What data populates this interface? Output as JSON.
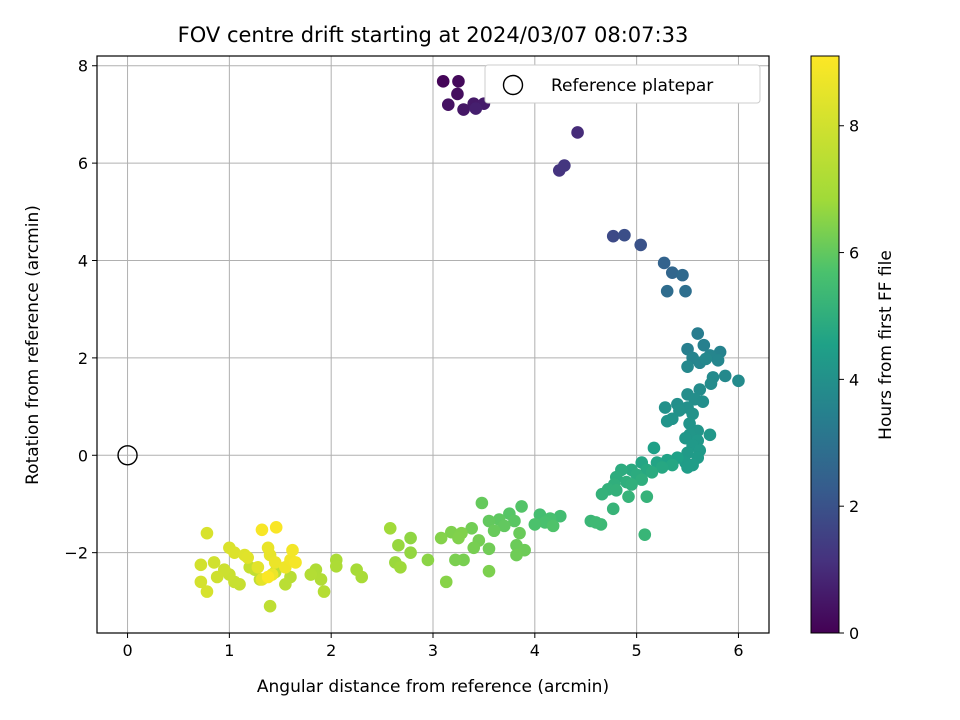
{
  "chart_data": {
    "type": "scatter",
    "title": "FOV centre drift starting at 2024/03/07 08:07:33",
    "xlabel": "Angular distance from reference (arcmin)",
    "ylabel": "Rotation from reference (arcmin)",
    "xlim": [
      -0.3,
      6.3
    ],
    "ylim": [
      -3.65,
      8.2
    ],
    "xticks": [
      "0",
      "1",
      "2",
      "3",
      "4",
      "5",
      "6"
    ],
    "yticks": [
      "−2",
      "0",
      "2",
      "4",
      "6",
      "8"
    ],
    "grid": true,
    "legend": {
      "placement": "top-right",
      "entries": [
        "Reference platepar"
      ]
    },
    "colorbar": {
      "label": "Hours from first FF file",
      "range": [
        0,
        9.1
      ],
      "ticks": [
        "0",
        "2",
        "4",
        "6",
        "8"
      ],
      "colormap": "viridis"
    },
    "reference_point": {
      "x": 0,
      "y": 0
    },
    "points": [
      [
        3.1,
        7.68,
        0.1
      ],
      [
        3.25,
        7.68,
        0.2
      ],
      [
        3.24,
        7.42,
        0.3
      ],
      [
        3.15,
        7.2,
        0.4
      ],
      [
        3.3,
        7.1,
        0.5
      ],
      [
        3.4,
        7.22,
        0.55
      ],
      [
        3.5,
        7.22,
        0.6
      ],
      [
        3.42,
        7.12,
        0.7
      ],
      [
        4.42,
        6.63,
        1.0
      ],
      [
        4.24,
        5.85,
        1.2
      ],
      [
        4.29,
        5.95,
        1.25
      ],
      [
        4.77,
        4.5,
        1.8
      ],
      [
        4.88,
        4.52,
        1.9
      ],
      [
        5.04,
        4.32,
        2.0
      ],
      [
        5.27,
        3.95,
        2.5
      ],
      [
        5.35,
        3.75,
        2.6
      ],
      [
        5.45,
        3.7,
        2.7
      ],
      [
        5.3,
        3.37,
        2.8
      ],
      [
        5.48,
        3.37,
        2.9
      ],
      [
        5.6,
        2.5,
        3.3
      ],
      [
        5.5,
        2.18,
        3.4
      ],
      [
        5.66,
        2.26,
        3.45
      ],
      [
        5.82,
        2.12,
        3.5
      ],
      [
        5.55,
        2.0,
        3.55
      ],
      [
        5.72,
        2.05,
        3.6
      ],
      [
        5.62,
        1.9,
        3.62
      ],
      [
        5.8,
        1.95,
        3.65
      ],
      [
        5.5,
        1.82,
        3.7
      ],
      [
        5.68,
        1.98,
        3.72
      ],
      [
        5.87,
        1.63,
        3.75
      ],
      [
        5.75,
        1.6,
        3.78
      ],
      [
        6.0,
        1.53,
        3.8
      ],
      [
        5.73,
        1.47,
        3.82
      ],
      [
        5.62,
        1.35,
        3.85
      ],
      [
        5.5,
        1.25,
        3.88
      ],
      [
        5.57,
        1.15,
        3.9
      ],
      [
        5.65,
        1.1,
        3.92
      ],
      [
        5.4,
        1.05,
        3.95
      ],
      [
        5.5,
        0.98,
        3.98
      ],
      [
        5.28,
        0.98,
        4.0
      ],
      [
        5.42,
        0.92,
        4.02
      ],
      [
        5.55,
        0.85,
        4.05
      ],
      [
        5.35,
        0.75,
        4.08
      ],
      [
        5.3,
        0.7,
        4.1
      ],
      [
        5.52,
        0.65,
        4.12
      ],
      [
        5.6,
        0.5,
        4.15
      ],
      [
        5.52,
        0.42,
        4.18
      ],
      [
        5.72,
        0.42,
        4.2
      ],
      [
        5.48,
        0.35,
        4.22
      ],
      [
        5.6,
        0.3,
        4.25
      ],
      [
        5.55,
        0.2,
        4.28
      ],
      [
        5.62,
        0.1,
        4.3
      ],
      [
        5.5,
        0.05,
        4.32
      ],
      [
        5.6,
        -0.05,
        4.35
      ],
      [
        5.48,
        -0.15,
        4.38
      ],
      [
        5.55,
        -0.2,
        4.4
      ],
      [
        5.5,
        -0.25,
        4.42
      ],
      [
        5.17,
        0.15,
        4.5
      ],
      [
        5.4,
        -0.05,
        4.55
      ],
      [
        5.3,
        -0.1,
        4.6
      ],
      [
        5.2,
        -0.15,
        4.65
      ],
      [
        5.05,
        -0.15,
        4.7
      ],
      [
        5.35,
        -0.2,
        4.72
      ],
      [
        5.25,
        -0.25,
        4.75
      ],
      [
        5.1,
        -0.3,
        4.8
      ],
      [
        4.95,
        -0.3,
        4.85
      ],
      [
        5.15,
        -0.35,
        4.88
      ],
      [
        5.0,
        -0.4,
        4.9
      ],
      [
        4.85,
        -0.3,
        4.92
      ],
      [
        4.8,
        -0.45,
        4.95
      ],
      [
        5.05,
        -0.5,
        4.98
      ],
      [
        4.9,
        -0.55,
        5.0
      ],
      [
        4.78,
        -0.6,
        5.02
      ],
      [
        4.95,
        -0.6,
        5.05
      ],
      [
        4.72,
        -0.7,
        5.08
      ],
      [
        4.8,
        -0.72,
        5.1
      ],
      [
        4.66,
        -0.8,
        5.12
      ],
      [
        5.1,
        -0.85,
        5.15
      ],
      [
        4.92,
        -0.85,
        5.18
      ],
      [
        4.77,
        -1.1,
        5.2
      ],
      [
        5.08,
        -1.63,
        5.25
      ],
      [
        4.55,
        -1.35,
        5.3
      ],
      [
        4.65,
        -1.42,
        5.35
      ],
      [
        4.6,
        -1.38,
        5.4
      ],
      [
        4.25,
        -1.25,
        5.5
      ],
      [
        4.05,
        -1.22,
        5.55
      ],
      [
        4.15,
        -1.3,
        5.6
      ],
      [
        4.1,
        -1.38,
        5.65
      ],
      [
        4.0,
        -1.42,
        5.7
      ],
      [
        4.18,
        -1.45,
        5.75
      ],
      [
        3.87,
        -1.05,
        5.8
      ],
      [
        3.75,
        -1.2,
        5.85
      ],
      [
        3.8,
        -1.35,
        5.9
      ],
      [
        3.65,
        -1.32,
        5.95
      ],
      [
        3.7,
        -1.45,
        6.0
      ],
      [
        3.55,
        -1.35,
        6.02
      ],
      [
        3.48,
        -0.98,
        6.05
      ],
      [
        3.6,
        -1.55,
        6.08
      ],
      [
        3.85,
        -1.6,
        6.1
      ],
      [
        3.82,
        -1.85,
        6.12
      ],
      [
        3.9,
        -1.95,
        6.15
      ],
      [
        3.82,
        -2.05,
        6.18
      ],
      [
        3.55,
        -1.92,
        6.2
      ],
      [
        3.38,
        -1.5,
        6.22
      ],
      [
        3.45,
        -1.75,
        6.25
      ],
      [
        3.4,
        -1.9,
        6.28
      ],
      [
        3.3,
        -2.15,
        6.3
      ],
      [
        3.22,
        -2.15,
        6.32
      ],
      [
        3.55,
        -2.38,
        6.35
      ],
      [
        3.18,
        -1.58,
        6.38
      ],
      [
        3.28,
        -1.6,
        6.4
      ],
      [
        3.25,
        -1.7,
        6.42
      ],
      [
        3.08,
        -1.7,
        6.45
      ],
      [
        3.13,
        -2.6,
        6.5
      ],
      [
        2.95,
        -2.15,
        6.55
      ],
      [
        2.78,
        -1.7,
        6.6
      ],
      [
        2.78,
        -2.0,
        6.65
      ],
      [
        2.66,
        -1.85,
        6.7
      ],
      [
        2.63,
        -2.2,
        6.75
      ],
      [
        2.68,
        -2.3,
        6.8
      ],
      [
        2.58,
        -1.5,
        6.85
      ],
      [
        2.25,
        -2.35,
        7.0
      ],
      [
        2.3,
        -2.5,
        7.05
      ],
      [
        2.05,
        -2.15,
        7.1
      ],
      [
        2.05,
        -2.28,
        7.15
      ],
      [
        1.85,
        -2.35,
        7.2
      ],
      [
        1.9,
        -2.55,
        7.25
      ],
      [
        1.8,
        -2.45,
        7.3
      ],
      [
        1.93,
        -2.8,
        7.35
      ],
      [
        1.6,
        -2.5,
        7.4
      ],
      [
        1.55,
        -2.65,
        7.45
      ],
      [
        1.45,
        -2.4,
        7.5
      ],
      [
        1.4,
        -3.1,
        7.55
      ],
      [
        1.3,
        -2.55,
        7.6
      ],
      [
        1.25,
        -2.35,
        7.65
      ],
      [
        1.2,
        -2.3,
        7.7
      ],
      [
        1.1,
        -2.65,
        7.75
      ],
      [
        1.05,
        -2.6,
        7.8
      ],
      [
        1.0,
        -2.45,
        7.85
      ],
      [
        0.95,
        -2.35,
        7.9
      ],
      [
        0.88,
        -2.5,
        7.95
      ],
      [
        0.85,
        -2.2,
        8.0
      ],
      [
        0.72,
        -2.25,
        8.05
      ],
      [
        0.72,
        -2.6,
        8.1
      ],
      [
        0.78,
        -2.8,
        8.15
      ],
      [
        0.78,
        -1.6,
        8.2
      ],
      [
        1.0,
        -1.9,
        8.25
      ],
      [
        1.05,
        -2.0,
        8.3
      ],
      [
        1.15,
        -2.05,
        8.35
      ],
      [
        1.18,
        -2.1,
        8.4
      ],
      [
        1.28,
        -2.3,
        8.45
      ],
      [
        1.32,
        -2.55,
        8.5
      ],
      [
        1.4,
        -2.05,
        8.55
      ],
      [
        1.38,
        -1.9,
        8.6
      ],
      [
        1.45,
        -2.2,
        8.65
      ],
      [
        1.42,
        -2.45,
        8.7
      ],
      [
        1.55,
        -2.3,
        8.75
      ],
      [
        1.6,
        -2.15,
        8.8
      ],
      [
        1.62,
        -1.95,
        8.85
      ],
      [
        1.65,
        -2.2,
        8.9
      ],
      [
        1.32,
        -1.53,
        8.95
      ],
      [
        1.46,
        -1.48,
        9.0
      ],
      [
        1.38,
        -2.5,
        9.05
      ]
    ]
  }
}
